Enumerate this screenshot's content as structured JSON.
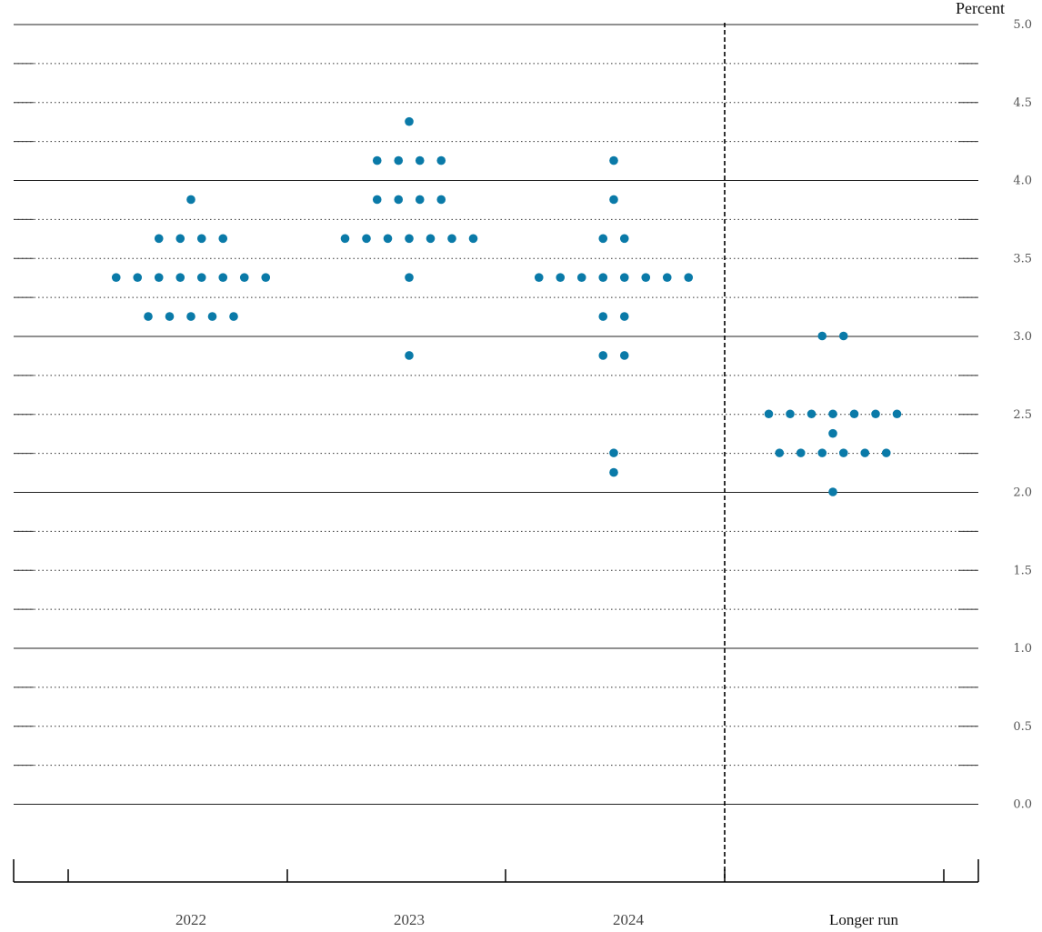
{
  "chart_data": {
    "type": "scatter",
    "ylabel": "Percent",
    "ylim": [
      -0.375,
      5.0
    ],
    "y_ticks": [
      "0.0",
      "0.5",
      "1.0",
      "1.5",
      "2.0",
      "2.5",
      "3.0",
      "3.5",
      "4.0",
      "4.5",
      "5.0"
    ],
    "categories": [
      "2022",
      "2023",
      "2024",
      "Longer run"
    ],
    "dot_color": "#0a7aa8",
    "series": [
      {
        "category": "2022",
        "points": [
          {
            "y": 3.875,
            "count": 1
          },
          {
            "y": 3.625,
            "count": 4
          },
          {
            "y": 3.375,
            "count": 8
          },
          {
            "y": 3.125,
            "count": 5
          }
        ]
      },
      {
        "category": "2023",
        "points": [
          {
            "y": 4.375,
            "count": 1
          },
          {
            "y": 4.125,
            "count": 4
          },
          {
            "y": 3.875,
            "count": 4
          },
          {
            "y": 3.625,
            "count": 7
          },
          {
            "y": 3.375,
            "count": 1
          },
          {
            "y": 2.875,
            "count": 1
          }
        ]
      },
      {
        "category": "2024",
        "points": [
          {
            "y": 4.125,
            "count": 1
          },
          {
            "y": 3.875,
            "count": 1
          },
          {
            "y": 3.625,
            "count": 2
          },
          {
            "y": 3.375,
            "count": 8
          },
          {
            "y": 3.125,
            "count": 2
          },
          {
            "y": 2.875,
            "count": 2
          },
          {
            "y": 2.25,
            "count": 1
          },
          {
            "y": 2.125,
            "count": 1
          }
        ]
      },
      {
        "category": "Longer run",
        "points": [
          {
            "y": 3.0,
            "count": 2
          },
          {
            "y": 2.5,
            "count": 7
          },
          {
            "y": 2.375,
            "count": 1
          },
          {
            "y": 2.25,
            "count": 6
          },
          {
            "y": 2.0,
            "count": 1
          }
        ]
      }
    ]
  }
}
